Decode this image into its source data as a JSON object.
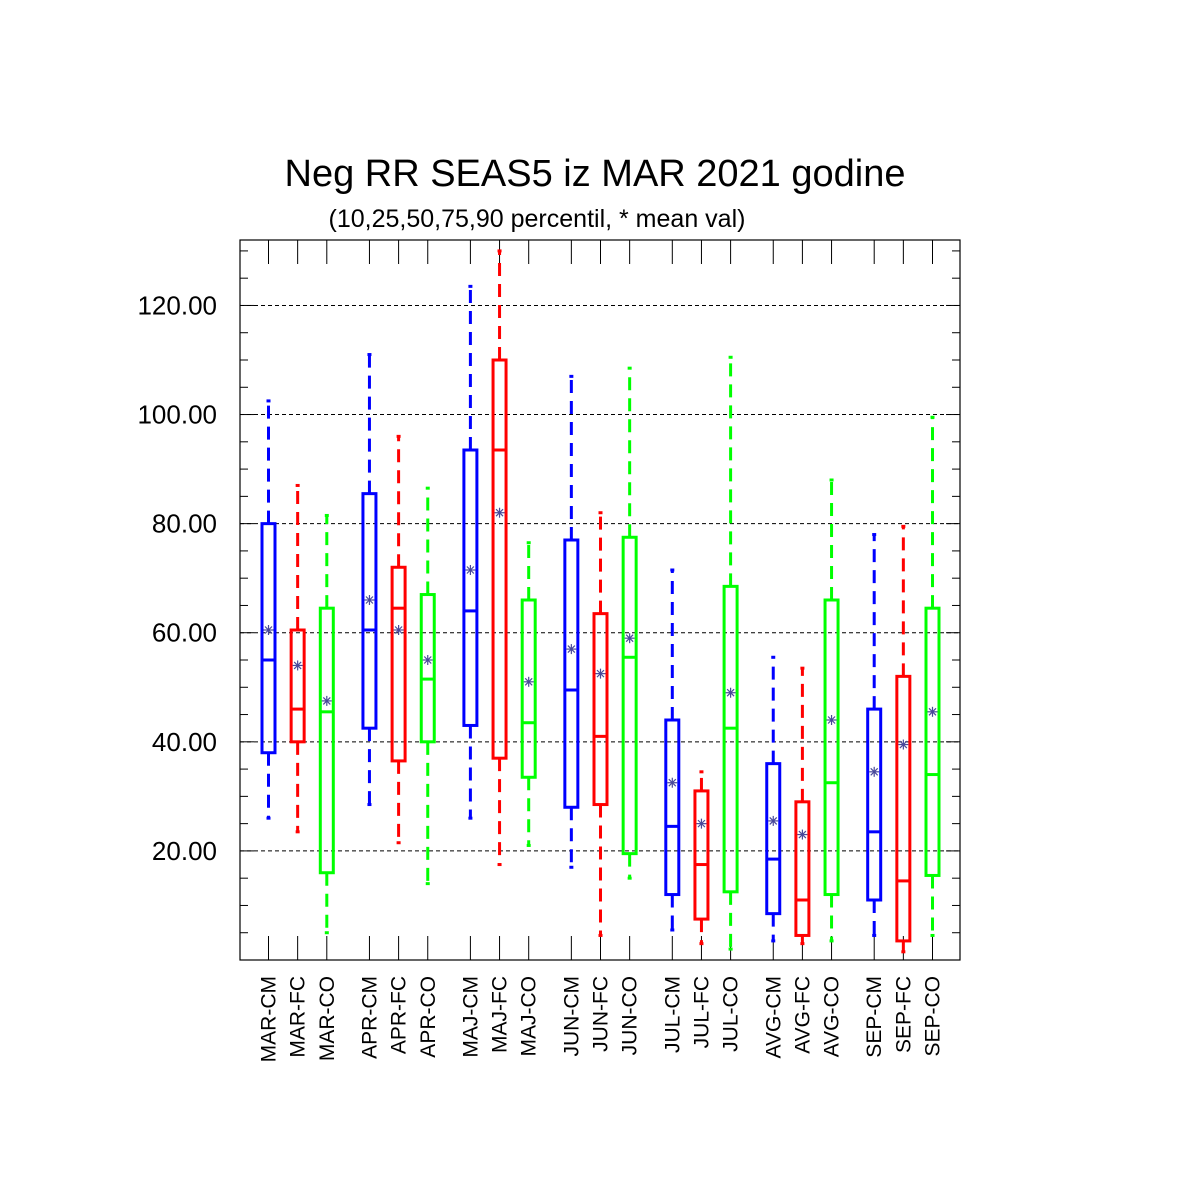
{
  "chart_data": {
    "type": "boxplot",
    "title": "Neg RR SEAS5 iz MAR 2021 godine",
    "subtitle": "(10,25,50,75,90 percentil, * mean val)",
    "ylim": [
      0,
      132
    ],
    "y_ticks": [
      20,
      40,
      60,
      80,
      100,
      120
    ],
    "y_tick_labels": [
      "20.00",
      "40.00",
      "60.00",
      "80.00",
      "100.00",
      "120.00"
    ],
    "grid": "horizontal dashed",
    "mean_color": "#4a4a9a",
    "series_colors": {
      "CM": "#0000ff",
      "FC": "#ff0000",
      "CO": "#00ff00"
    },
    "categories": [
      "MAR-CM",
      "MAR-FC",
      "MAR-CO",
      "APR-CM",
      "APR-FC",
      "APR-CO",
      "MAJ-CM",
      "MAJ-FC",
      "MAJ-CO",
      "JUN-CM",
      "JUN-FC",
      "JUN-CO",
      "JUL-CM",
      "JUL-FC",
      "JUL-CO",
      "AVG-CM",
      "AVG-FC",
      "AVG-CO",
      "SEP-CM",
      "SEP-FC",
      "SEP-CO"
    ],
    "boxes": [
      {
        "p10": 26.0,
        "p25": 38.0,
        "p50": 55.0,
        "p75": 80.0,
        "p90": 102.5,
        "mean": 60.5,
        "group": "CM"
      },
      {
        "p10": 23.5,
        "p25": 40.0,
        "p50": 46.0,
        "p75": 60.5,
        "p90": 87.0,
        "mean": 54.0,
        "group": "FC"
      },
      {
        "p10": 5.0,
        "p25": 16.0,
        "p50": 45.5,
        "p75": 64.5,
        "p90": 81.5,
        "mean": 47.5,
        "group": "CO"
      },
      {
        "p10": 28.5,
        "p25": 42.5,
        "p50": 60.5,
        "p75": 85.5,
        "p90": 111.0,
        "mean": 66.0,
        "group": "CM"
      },
      {
        "p10": 21.5,
        "p25": 36.5,
        "p50": 64.5,
        "p75": 72.0,
        "p90": 96.0,
        "mean": 60.5,
        "group": "FC"
      },
      {
        "p10": 14.0,
        "p25": 40.0,
        "p50": 51.5,
        "p75": 67.0,
        "p90": 86.5,
        "mean": 55.0,
        "group": "CO"
      },
      {
        "p10": 26.0,
        "p25": 43.0,
        "p50": 64.0,
        "p75": 93.5,
        "p90": 123.5,
        "mean": 71.5,
        "group": "CM"
      },
      {
        "p10": 17.5,
        "p25": 37.0,
        "p50": 93.5,
        "p75": 110.0,
        "p90": 130.0,
        "mean": 82.0,
        "group": "FC"
      },
      {
        "p10": 21.0,
        "p25": 33.5,
        "p50": 43.5,
        "p75": 66.0,
        "p90": 76.5,
        "mean": 51.0,
        "group": "CO"
      },
      {
        "p10": 17.0,
        "p25": 28.0,
        "p50": 49.5,
        "p75": 77.0,
        "p90": 107.0,
        "mean": 57.0,
        "group": "CM"
      },
      {
        "p10": 4.5,
        "p25": 28.5,
        "p50": 41.0,
        "p75": 63.5,
        "p90": 82.0,
        "mean": 52.5,
        "group": "FC"
      },
      {
        "p10": 15.0,
        "p25": 19.5,
        "p50": 55.5,
        "p75": 77.5,
        "p90": 108.5,
        "mean": 59.0,
        "group": "CO"
      },
      {
        "p10": 5.5,
        "p25": 12.0,
        "p50": 24.5,
        "p75": 44.0,
        "p90": 71.5,
        "mean": 32.5,
        "group": "CM"
      },
      {
        "p10": 3.0,
        "p25": 7.5,
        "p50": 17.5,
        "p75": 31.0,
        "p90": 34.5,
        "mean": 25.0,
        "group": "FC"
      },
      {
        "p10": 2.0,
        "p25": 12.5,
        "p50": 42.5,
        "p75": 68.5,
        "p90": 110.5,
        "mean": 49.0,
        "group": "CO"
      },
      {
        "p10": 3.5,
        "p25": 8.5,
        "p50": 18.5,
        "p75": 36.0,
        "p90": 55.5,
        "mean": 25.5,
        "group": "CM"
      },
      {
        "p10": 3.0,
        "p25": 4.5,
        "p50": 11.0,
        "p75": 29.0,
        "p90": 53.5,
        "mean": 23.0,
        "group": "FC"
      },
      {
        "p10": 3.5,
        "p25": 12.0,
        "p50": 32.5,
        "p75": 66.0,
        "p90": 88.0,
        "mean": 44.0,
        "group": "CO"
      },
      {
        "p10": 4.5,
        "p25": 11.0,
        "p50": 23.5,
        "p75": 46.0,
        "p90": 78.0,
        "mean": 34.5,
        "group": "CM"
      },
      {
        "p10": 1.5,
        "p25": 3.5,
        "p50": 14.5,
        "p75": 52.0,
        "p90": 79.5,
        "mean": 39.5,
        "group": "FC"
      },
      {
        "p10": 4.5,
        "p25": 15.5,
        "p50": 34.0,
        "p75": 64.5,
        "p90": 99.5,
        "mean": 45.5,
        "group": "CO"
      }
    ]
  }
}
